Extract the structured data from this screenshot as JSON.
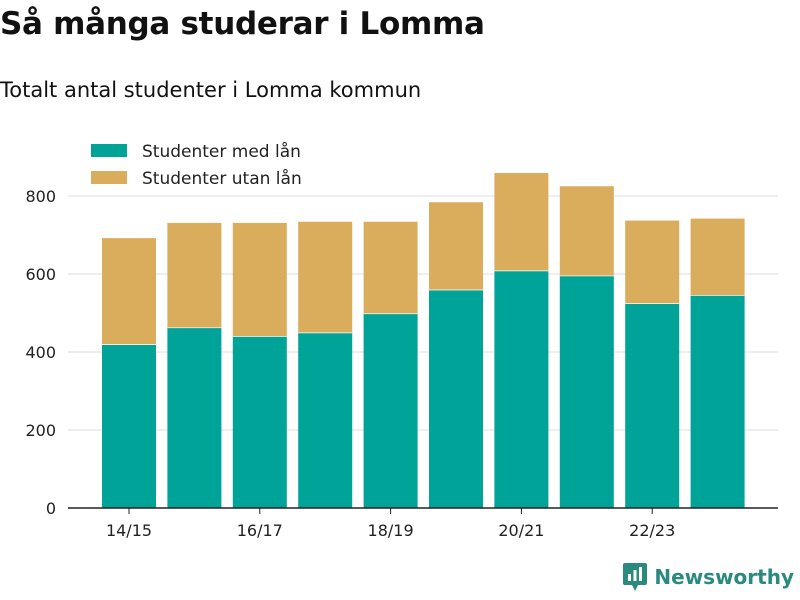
{
  "title": "Så många studerar i Lomma",
  "subtitle": "Totalt antal studenter i Lomma kommun",
  "brand": "Newsworthy",
  "colors": {
    "med_lan": "#00a398",
    "utan_lan": "#d9ad5c",
    "grid": "#dddddd",
    "axis": "#222222",
    "brand": "#2b8a7e"
  },
  "chart_data": {
    "type": "bar",
    "stacked": true,
    "categories": [
      "14/15",
      "15/16",
      "16/17",
      "17/18",
      "18/19",
      "19/20",
      "20/21",
      "21/22",
      "22/23",
      "23/24"
    ],
    "x_tick_labels": [
      "14/15",
      "16/17",
      "18/19",
      "20/21",
      "22/23"
    ],
    "series": [
      {
        "name": "Studenter med lån",
        "values": [
          420,
          463,
          441,
          450,
          499,
          560,
          609,
          596,
          525,
          546
        ]
      },
      {
        "name": "Studenter utan lån",
        "values": [
          272,
          268,
          290,
          284,
          235,
          224,
          250,
          229,
          212,
          196
        ]
      }
    ],
    "ylim": [
      0,
      900
    ],
    "yticks": [
      0,
      200,
      400,
      600,
      800
    ],
    "grid": true,
    "legend": "top-left"
  }
}
